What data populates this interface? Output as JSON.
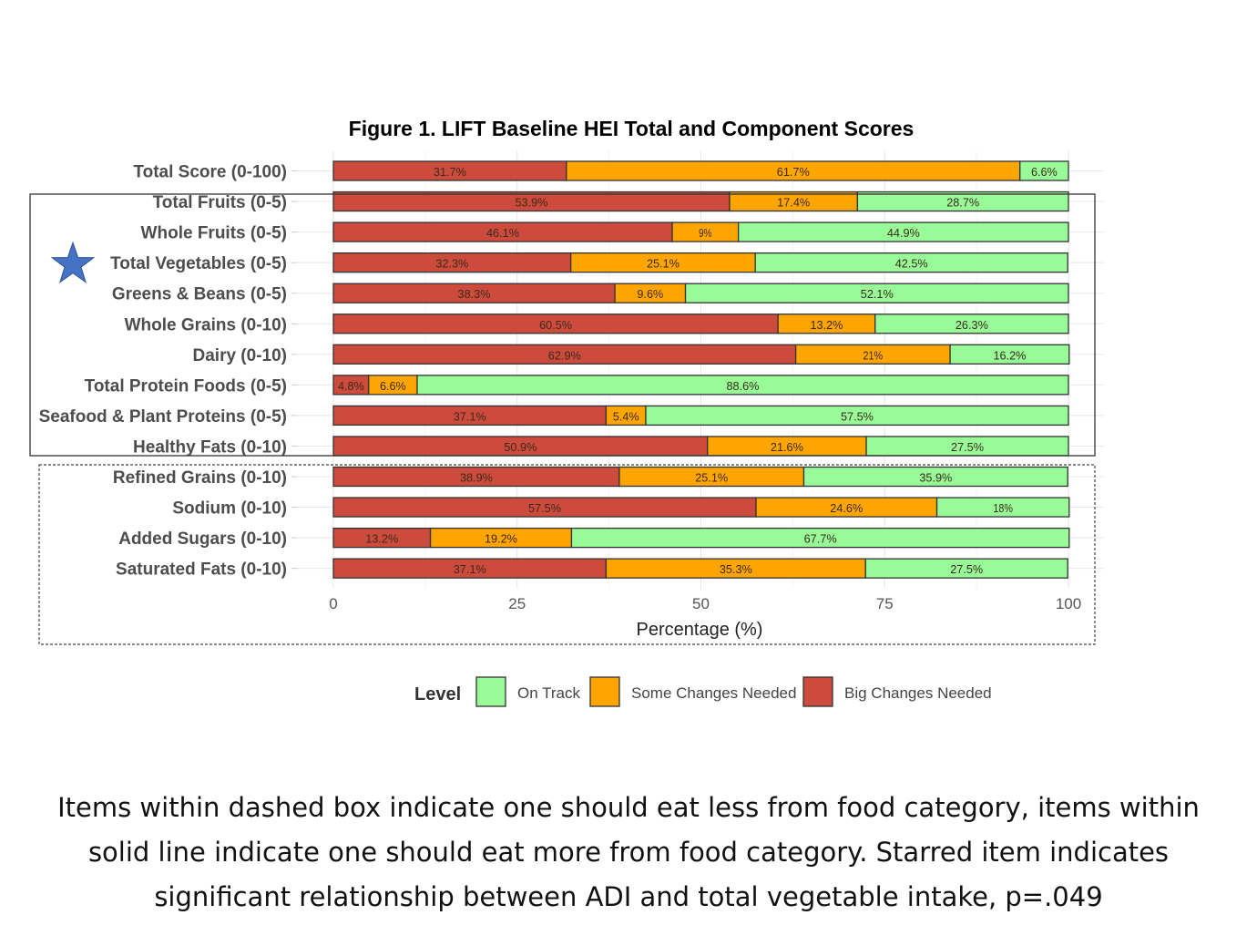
{
  "chart_data": {
    "type": "bar",
    "orientation": "horizontal-stacked-percent",
    "title": "Figure 1. LIFT Baseline HEI Total and Component Scores",
    "xlabel": "Percentage (%)",
    "ylabel": "",
    "xlim": [
      0,
      100
    ],
    "x_ticks": [
      "0",
      "25",
      "50",
      "75",
      "100"
    ],
    "grid": true,
    "legend": {
      "title": "Level",
      "placement": "bottom",
      "entries": [
        "On Track",
        "Some Changes Needed",
        "Big Changes Needed"
      ]
    },
    "categories": [
      "Total Score (0-100)",
      "Total Fruits (0-5)",
      "Whole Fruits (0-5)",
      "Total Vegetables (0-5)",
      "Greens & Beans (0-5)",
      "Whole Grains (0-10)",
      "Dairy (0-10)",
      "Total Protein Foods (0-5)",
      "Seafood & Plant Proteins (0-5)",
      "Healthy Fats (0-10)",
      "Refined Grains (0-10)",
      "Sodium (0-10)",
      "Added Sugars (0-10)",
      "Saturated Fats (0-10)"
    ],
    "series": [
      {
        "name": "Big Changes Needed",
        "color": "#cd4b3c",
        "values": [
          31.7,
          53.9,
          46.1,
          32.3,
          38.3,
          60.5,
          62.9,
          4.8,
          37.1,
          50.9,
          38.9,
          57.5,
          13.2,
          37.1
        ],
        "labels": [
          "31.7%",
          "53.9%",
          "46.1%",
          "32.3%",
          "38.3%",
          "60.5%",
          "62.9%",
          "4.8%",
          "37.1%",
          "50.9%",
          "38.9%",
          "57.5%",
          "13.2%",
          "37.1%"
        ]
      },
      {
        "name": "Some Changes Needed",
        "color": "#ffa500",
        "values": [
          61.7,
          17.4,
          9,
          25.1,
          9.6,
          13.2,
          21,
          6.6,
          5.4,
          21.6,
          25.1,
          24.6,
          19.2,
          35.3
        ],
        "labels": [
          "61.7%",
          "17.4%",
          "9%",
          "25.1%",
          "9.6%",
          "13.2%",
          "21%",
          "6.6%",
          "5.4%",
          "21.6%",
          "25.1%",
          "24.6%",
          "19.2%",
          "35.3%"
        ]
      },
      {
        "name": "On Track",
        "color": "#98fb98",
        "values": [
          6.6,
          28.7,
          44.9,
          42.5,
          52.1,
          26.3,
          16.2,
          88.6,
          57.5,
          27.5,
          35.9,
          18,
          67.7,
          27.5
        ],
        "labels": [
          "6.6%",
          "28.7%",
          "44.9%",
          "42.5%",
          "52.1%",
          "26.3%",
          "16.2%",
          "88.6%",
          "57.5%",
          "27.5%",
          "35.9%",
          "18%",
          "67.7%",
          "27.5%"
        ]
      }
    ],
    "annotations": {
      "solid_box_categories": [
        "Total Fruits (0-5)",
        "Whole Fruits (0-5)",
        "Total Vegetables (0-5)",
        "Greens & Beans (0-5)",
        "Whole Grains (0-10)",
        "Dairy (0-10)",
        "Total Protein Foods (0-5)",
        "Seafood & Plant Proteins (0-5)",
        "Healthy Fats (0-10)"
      ],
      "dashed_box_categories": [
        "Refined Grains (0-10)",
        "Sodium (0-10)",
        "Added Sugars (0-10)",
        "Saturated Fats (0-10)"
      ],
      "starred_category": "Total Vegetables (0-5)",
      "star_color": "#4472c4"
    }
  },
  "caption": {
    "lines": [
      "Items within dashed box indicate one should eat less from food category, items within",
      "solid line indicate one should eat more from food category. Starred item indicates",
      "significant relationship between ADI and total vegetable intake, p=.049"
    ]
  }
}
